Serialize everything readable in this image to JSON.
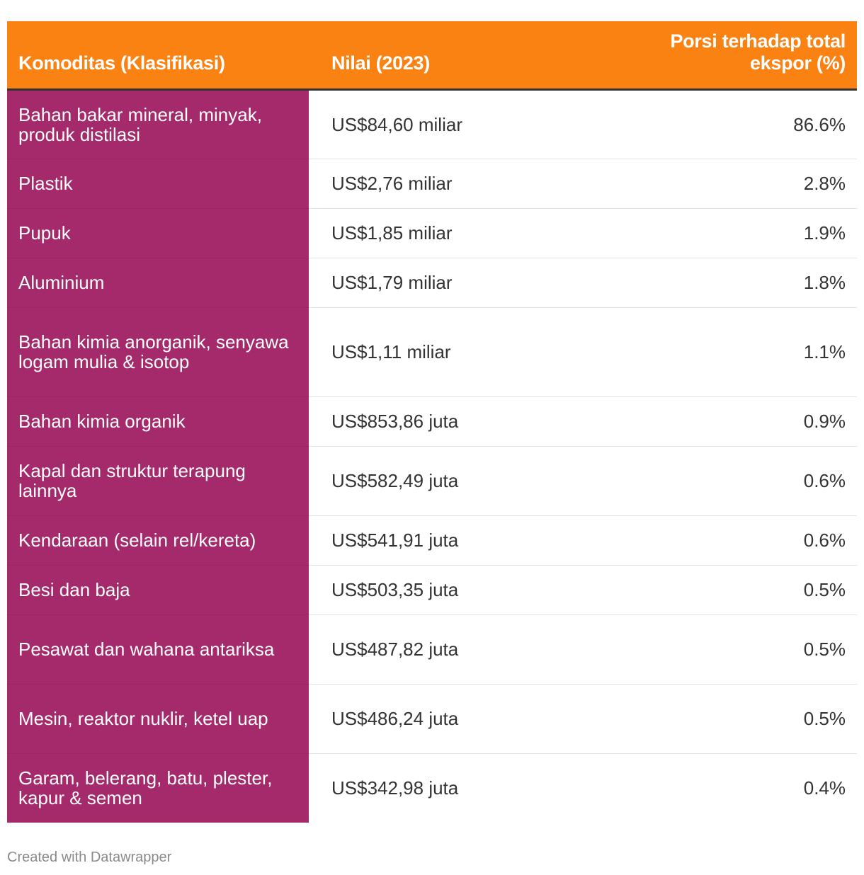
{
  "chart_data": {
    "type": "table",
    "columns": [
      "Komoditas (Klasifikasi)",
      "Nilai (2023)",
      "Porsi terhadap total ekspor (%)"
    ],
    "rows": [
      {
        "commodity": "Bahan bakar mineral, minyak, produk distilasi",
        "value": "US$84,60 miliar",
        "share": "86.6%"
      },
      {
        "commodity": "Plastik",
        "value": "US$2,76 miliar",
        "share": "2.8%"
      },
      {
        "commodity": "Pupuk",
        "value": "US$1,85 miliar",
        "share": "1.9%"
      },
      {
        "commodity": "Aluminium",
        "value": "US$1,79 miliar",
        "share": "1.8%"
      },
      {
        "commodity": "Bahan kimia anorganik, senyawa logam mulia & isotop",
        "value": "US$1,11 miliar",
        "share": "1.1%"
      },
      {
        "commodity": "Bahan kimia organik",
        "value": "US$853,86 juta",
        "share": "0.9%"
      },
      {
        "commodity": "Kapal dan struktur terapung lainnya",
        "value": "US$582,49 juta",
        "share": "0.6%"
      },
      {
        "commodity": "Kendaraan (selain rel/kereta)",
        "value": "US$541,91 juta",
        "share": "0.6%"
      },
      {
        "commodity": "Besi dan baja",
        "value": "US$503,35 juta",
        "share": "0.5%"
      },
      {
        "commodity": "Pesawat dan wahana antariksa",
        "value": "US$487,82 juta",
        "share": "0.5%"
      },
      {
        "commodity": "Mesin, reaktor nuklir, ketel uap",
        "value": "US$486,24 juta",
        "share": "0.5%"
      },
      {
        "commodity": "Garam, belerang, batu, plester, kapur & semen",
        "value": "US$342,98 juta",
        "share": "0.4%"
      }
    ],
    "colors": {
      "header": "#fa8212",
      "first_column": "#a52a6c"
    }
  },
  "footer": "Created with Datawrapper"
}
